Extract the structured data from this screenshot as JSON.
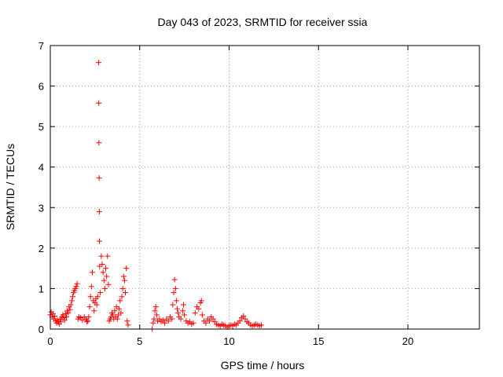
{
  "chart_data": {
    "type": "scatter",
    "title": "Day 043 of 2023, SRMTID for receiver ssia",
    "xlabel": "GPS time / hours",
    "ylabel": "SRMTID / TECUs",
    "xlim": [
      0,
      24
    ],
    "ylim": [
      0,
      7
    ],
    "x_ticks": [
      0,
      5,
      10,
      15,
      20
    ],
    "y_ticks": [
      0,
      1,
      2,
      3,
      4,
      5,
      6,
      7
    ],
    "grid": true,
    "marker": "+",
    "color": "#ff0000",
    "series": [
      {
        "points": [
          [
            0.0,
            0.35
          ],
          [
            0.05,
            0.42
          ],
          [
            0.1,
            0.3
          ],
          [
            0.15,
            0.38
          ],
          [
            0.2,
            0.25
          ],
          [
            0.25,
            0.32
          ],
          [
            0.3,
            0.2
          ],
          [
            0.35,
            0.15
          ],
          [
            0.4,
            0.22
          ],
          [
            0.45,
            0.18
          ],
          [
            0.5,
            0.12
          ],
          [
            0.55,
            0.25
          ],
          [
            0.6,
            0.18
          ],
          [
            0.65,
            0.3
          ],
          [
            0.7,
            0.35
          ],
          [
            0.75,
            0.28
          ],
          [
            0.8,
            0.22
          ],
          [
            0.85,
            0.38
          ],
          [
            0.9,
            0.3
          ],
          [
            0.95,
            0.45
          ],
          [
            1.0,
            0.4
          ],
          [
            1.05,
            0.55
          ],
          [
            1.1,
            0.48
          ],
          [
            1.15,
            0.6
          ],
          [
            1.2,
            0.7
          ],
          [
            1.25,
            0.8
          ],
          [
            1.3,
            0.9
          ],
          [
            1.35,
            0.95
          ],
          [
            1.4,
            1.0
          ],
          [
            1.45,
            1.05
          ],
          [
            1.5,
            1.12
          ],
          [
            1.55,
            0.25
          ],
          [
            1.6,
            0.3
          ],
          [
            1.7,
            0.28
          ],
          [
            1.8,
            0.22
          ],
          [
            1.9,
            0.3
          ],
          [
            2.0,
            0.25
          ],
          [
            2.05,
            0.18
          ],
          [
            2.1,
            0.2
          ],
          [
            2.15,
            0.3
          ],
          [
            2.2,
            0.55
          ],
          [
            2.25,
            0.8
          ],
          [
            2.3,
            1.05
          ],
          [
            2.35,
            1.4
          ],
          [
            2.4,
            0.7
          ],
          [
            2.45,
            0.45
          ],
          [
            2.5,
            0.65
          ],
          [
            2.55,
            0.75
          ],
          [
            2.6,
            0.6
          ],
          [
            2.65,
            0.8
          ],
          [
            2.7,
            6.58
          ],
          [
            2.71,
            5.58
          ],
          [
            2.72,
            4.6
          ],
          [
            2.73,
            3.73
          ],
          [
            2.74,
            2.9
          ],
          [
            2.75,
            2.17
          ],
          [
            2.76,
            1.55
          ],
          [
            2.8,
            0.9
          ],
          [
            2.85,
            1.8
          ],
          [
            2.9,
            1.6
          ],
          [
            2.95,
            1.4
          ],
          [
            3.0,
            1.2
          ],
          [
            3.05,
            1.0
          ],
          [
            3.1,
            1.5
          ],
          [
            3.15,
            1.3
          ],
          [
            3.2,
            1.8
          ],
          [
            3.25,
            1.1
          ],
          [
            3.3,
            0.2
          ],
          [
            3.35,
            0.25
          ],
          [
            3.4,
            0.3
          ],
          [
            3.45,
            0.4
          ],
          [
            3.5,
            0.35
          ],
          [
            3.55,
            0.25
          ],
          [
            3.6,
            0.45
          ],
          [
            3.65,
            0.3
          ],
          [
            3.7,
            0.55
          ],
          [
            3.75,
            0.25
          ],
          [
            3.8,
            0.35
          ],
          [
            3.85,
            0.5
          ],
          [
            3.9,
            0.7
          ],
          [
            3.95,
            0.4
          ],
          [
            4.0,
            0.8
          ],
          [
            4.05,
            1.0
          ],
          [
            4.1,
            1.3
          ],
          [
            4.15,
            1.2
          ],
          [
            4.2,
            0.9
          ],
          [
            4.25,
            1.5
          ],
          [
            4.3,
            0.2
          ],
          [
            4.35,
            0.1
          ],
          [
            5.7,
            0.0
          ],
          [
            5.75,
            0.15
          ],
          [
            5.8,
            0.25
          ],
          [
            5.85,
            0.45
          ],
          [
            5.9,
            0.55
          ],
          [
            5.95,
            0.35
          ],
          [
            6.0,
            0.2
          ],
          [
            6.1,
            0.25
          ],
          [
            6.2,
            0.18
          ],
          [
            6.3,
            0.22
          ],
          [
            6.4,
            0.15
          ],
          [
            6.5,
            0.25
          ],
          [
            6.6,
            0.2
          ],
          [
            6.7,
            0.3
          ],
          [
            6.8,
            0.25
          ],
          [
            6.85,
            0.6
          ],
          [
            6.9,
            0.9
          ],
          [
            6.95,
            1.22
          ],
          [
            7.0,
            1.0
          ],
          [
            7.05,
            0.7
          ],
          [
            7.1,
            0.5
          ],
          [
            7.15,
            0.4
          ],
          [
            7.2,
            0.3
          ],
          [
            7.3,
            0.25
          ],
          [
            7.4,
            0.45
          ],
          [
            7.45,
            0.6
          ],
          [
            7.5,
            0.35
          ],
          [
            7.6,
            0.2
          ],
          [
            7.7,
            0.15
          ],
          [
            7.8,
            0.18
          ],
          [
            7.9,
            0.12
          ],
          [
            8.0,
            0.15
          ],
          [
            8.1,
            0.4
          ],
          [
            8.2,
            0.55
          ],
          [
            8.3,
            0.5
          ],
          [
            8.4,
            0.65
          ],
          [
            8.45,
            0.7
          ],
          [
            8.5,
            0.35
          ],
          [
            8.6,
            0.2
          ],
          [
            8.7,
            0.15
          ],
          [
            8.8,
            0.25
          ],
          [
            8.9,
            0.2
          ],
          [
            9.0,
            0.3
          ],
          [
            9.1,
            0.25
          ],
          [
            9.2,
            0.18
          ],
          [
            9.3,
            0.12
          ],
          [
            9.4,
            0.1
          ],
          [
            9.5,
            0.08
          ],
          [
            9.6,
            0.12
          ],
          [
            9.7,
            0.1
          ],
          [
            9.8,
            0.08
          ],
          [
            9.9,
            0.05
          ],
          [
            10.0,
            0.08
          ],
          [
            10.1,
            0.1
          ],
          [
            10.2,
            0.08
          ],
          [
            10.3,
            0.12
          ],
          [
            10.4,
            0.1
          ],
          [
            10.5,
            0.15
          ],
          [
            10.6,
            0.2
          ],
          [
            10.7,
            0.28
          ],
          [
            10.8,
            0.32
          ],
          [
            10.9,
            0.25
          ],
          [
            11.0,
            0.18
          ],
          [
            11.1,
            0.15
          ],
          [
            11.2,
            0.1
          ],
          [
            11.3,
            0.08
          ],
          [
            11.4,
            0.1
          ],
          [
            11.5,
            0.12
          ],
          [
            11.6,
            0.1
          ],
          [
            11.7,
            0.08
          ],
          [
            11.8,
            0.1
          ]
        ]
      }
    ]
  }
}
